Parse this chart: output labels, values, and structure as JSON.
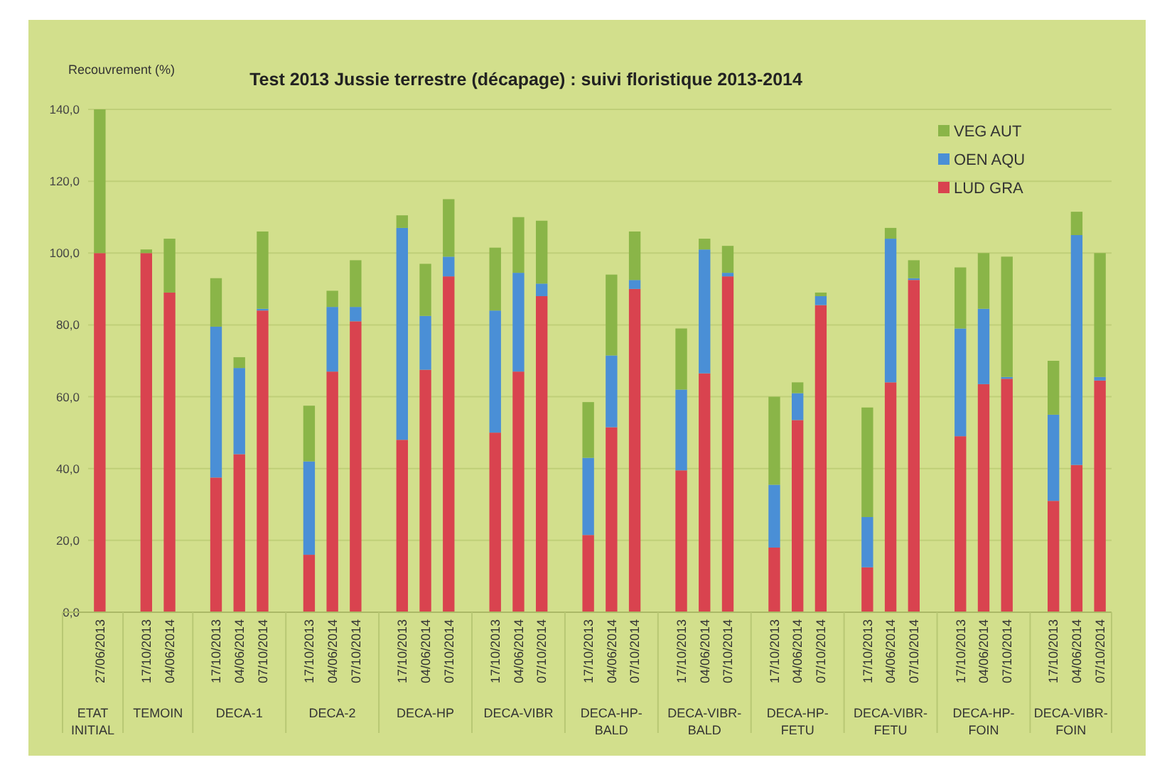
{
  "chart_data": {
    "type": "bar",
    "stacked": true,
    "title": "Test 2013 Jussie terrestre (décapage) : suivi floristique 2013-2014",
    "ylabel": "Recouvrement (%)",
    "categories": [
      "27/06/2013",
      null,
      "17/10/2013",
      "04/06/2014",
      null,
      "17/10/2013",
      "04/06/2014",
      "07/10/2014",
      null,
      "17/10/2013",
      "04/06/2014",
      "07/10/2014",
      null,
      "17/10/2013",
      "04/06/2014",
      "07/10/2014",
      null,
      "17/10/2013",
      "04/06/2014",
      "07/10/2014",
      null,
      "17/10/2013",
      "04/06/2014",
      "07/10/2014",
      null,
      "17/10/2013",
      "04/06/2014",
      "07/10/2014",
      null,
      "17/10/2013",
      "04/06/2014",
      "07/10/2014",
      null,
      "17/10/2013",
      "04/06/2014",
      "07/10/2014",
      null,
      "17/10/2013",
      "04/06/2014",
      "07/10/2014",
      null,
      "17/10/2013",
      "04/06/2014",
      "07/10/2014"
    ],
    "series": [
      {
        "name": "LUD GRA",
        "color": "#d9434f",
        "values": [
          100,
          null,
          100,
          89,
          null,
          37.5,
          44,
          84,
          null,
          16,
          67,
          81,
          null,
          48,
          67.5,
          93.5,
          null,
          50,
          67,
          88,
          null,
          21.5,
          51.5,
          90,
          null,
          39.5,
          66.5,
          93.5,
          null,
          18,
          53.5,
          85.5,
          null,
          12.5,
          64,
          92.5,
          null,
          49,
          63.5,
          65,
          null,
          31,
          41,
          64.5
        ]
      },
      {
        "name": "OEN AQU",
        "color": "#4a8fd6",
        "values": [
          0,
          null,
          0,
          0,
          null,
          42,
          24,
          0.5,
          null,
          26,
          18,
          4,
          null,
          59,
          15,
          5.5,
          null,
          34,
          27.5,
          3.5,
          null,
          21.5,
          20,
          2.5,
          null,
          22.5,
          34.5,
          1,
          null,
          17.5,
          7.5,
          2.5,
          null,
          14,
          40,
          0.5,
          null,
          30,
          21,
          0.5,
          null,
          24,
          64,
          1
        ]
      },
      {
        "name": "VEG AUT",
        "color": "#8ab548",
        "values": [
          40,
          null,
          1,
          15,
          null,
          13.5,
          3,
          21.5,
          null,
          15.5,
          4.5,
          13,
          null,
          3.5,
          14.5,
          16,
          null,
          17.5,
          15.5,
          17.5,
          null,
          15.5,
          22.5,
          13.5,
          null,
          17,
          3,
          7.5,
          null,
          24.5,
          3,
          1,
          null,
          30.5,
          3,
          5,
          null,
          17,
          15.5,
          33.5,
          null,
          15,
          6.5,
          34.5
        ]
      }
    ],
    "ylim": [
      0,
      140
    ],
    "yticks": [
      {
        "value": 0,
        "label": "0,0"
      },
      {
        "value": 20,
        "label": "20,0"
      },
      {
        "value": 40,
        "label": "40,0"
      },
      {
        "value": 60,
        "label": "60,0"
      },
      {
        "value": 80,
        "label": "80,0"
      },
      {
        "value": 100,
        "label": "100,0"
      },
      {
        "value": 120,
        "label": "120,0"
      },
      {
        "value": 140,
        "label": "140,0"
      }
    ],
    "grid": "y",
    "legend": "top right",
    "annotations": [
      "ETAT INITIAL",
      "TEMOIN",
      "DECA-1",
      "DECA-2",
      "DECA-HP",
      "DECA-VIBR",
      "DECA-HP-BALD",
      "DECA-VIBR-BALD",
      "DECA-HP-FETU",
      "DECA-VIBR-FETU",
      "DECA-HP-FOIN",
      "DECA-VIBR-FOIN"
    ]
  }
}
